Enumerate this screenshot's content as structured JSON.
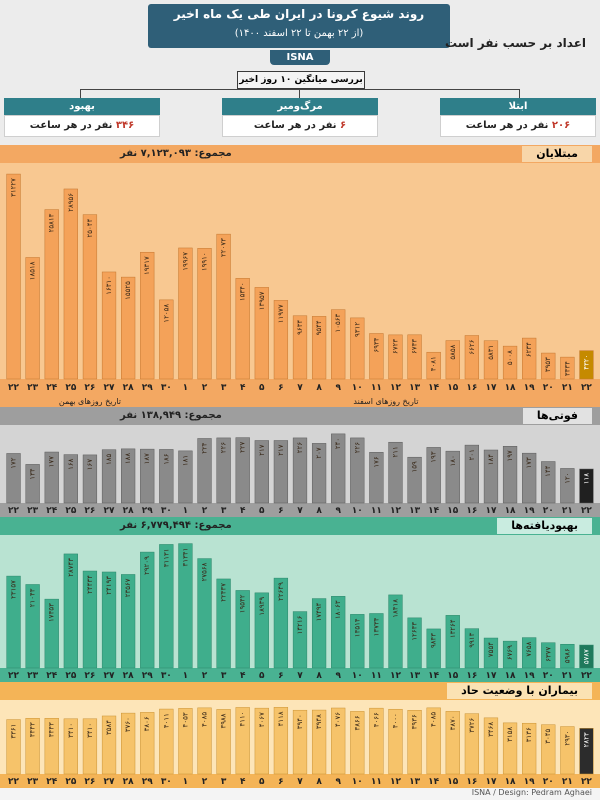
{
  "header": {
    "title": "روند شیوع کرونا در ایران طی یک ماه اخیر",
    "subtitle": "(از ۲۲ بهمن تا ۲۲ اسفند ۱۴۰۰)",
    "brand": "ISNA",
    "note": "اعداد بر حسب نفر است",
    "avg_label": "بررسی میانگین ۱۰ روز اخیر"
  },
  "stats": [
    {
      "title": "ابتلا",
      "value": "۲۰۶",
      "unit": "نفر در هر ساعت"
    },
    {
      "title": "مرگ‌ومیر",
      "value": "۶",
      "unit": "نفر در هر ساعت"
    },
    {
      "title": "بهبود",
      "value": "۳۴۶",
      "unit": "نفر در هر ساعت"
    }
  ],
  "colors": {
    "header_blue": "#2f5f78",
    "stat_teal": "#2f7f8a",
    "orange": "#f4a259",
    "gray": "#8a8a8a",
    "green": "#3fae8c",
    "gold": "#f6c36a"
  },
  "axis": {
    "dates": [
      "۲۲",
      "۲۳",
      "۲۴",
      "۲۵",
      "۲۶",
      "۲۷",
      "۲۸",
      "۲۹",
      "۳۰",
      "۱",
      "۲",
      "۳",
      "۴",
      "۵",
      "۶",
      "۷",
      "۸",
      "۹",
      "۱۰",
      "۱۱",
      "۱۲",
      "۱۳",
      "۱۴",
      "۱۵",
      "۱۶",
      "۱۷",
      "۱۸",
      "۱۹",
      "۲۰",
      "۲۱",
      "۲۲"
    ],
    "bahman_label": "تاریخ روزهای بهمن",
    "esfand_label": "تاریخ روزهای اسفند"
  },
  "footer": "ISNA / Design: Pedram Aghaei",
  "chart_data": [
    {
      "type": "bar",
      "title": "مبتلایان",
      "total_label": "مجموع: ۷,۱۲۳,۰۹۳ نفر",
      "categories": [
        "۲۲",
        "۲۳",
        "۲۴",
        "۲۵",
        "۲۶",
        "۲۷",
        "۲۸",
        "۲۹",
        "۳۰",
        "۱",
        "۲",
        "۳",
        "۴",
        "۵",
        "۶",
        "۷",
        "۸",
        "۹",
        "۱۰",
        "۱۱",
        "۱۲",
        "۱۳",
        "۱۴",
        "۱۵",
        "۱۶",
        "۱۷",
        "۱۸",
        "۱۹",
        "۲۰",
        "۲۱",
        "۲۲"
      ],
      "values": [
        31227,
        18518,
        25813,
        28956,
        25044,
        16310,
        15525,
        19317,
        12058,
        19967,
        19910,
        22073,
        15340,
        13957,
        11977,
        9634,
        9544,
        10563,
        9312,
        6934,
        6723,
        6733,
        4081,
        5858,
        6626,
        5831,
        5008,
        6234,
        3953,
        3334,
        4320
      ],
      "labels": [
        "۳۱۲۲۷",
        "۱۸۵۱۸",
        "۲۵۸۱۳",
        "۲۸۹۵۶",
        "۲۵۰۴۴",
        "۱۶۳۱۰",
        "۱۵۵۲۵",
        "۱۹۳۱۷",
        "۱۲۰۵۸",
        "۱۹۹۶۷",
        "۱۹۹۱۰",
        "۲۲۰۷۳",
        "۱۵۳۴۰",
        "۱۳۹۵۷",
        "۱۱۹۷۷",
        "۹۶۳۴",
        "۹۵۴۴",
        "۱۰۵۶۳",
        "۹۳۱۲",
        "۶۹۳۴",
        "۶۷۲۳",
        "۶۷۳۳",
        "۴۰۸۱",
        "۵۸۵۸",
        "۶۶۲۶",
        "۵۸۳۱",
        "۵۰۰۸",
        "۶۲۳۴",
        "۳۹۵۳",
        "۳۳۳۴",
        "۴۳۲۰"
      ],
      "ylim": [
        0,
        32000
      ]
    },
    {
      "type": "bar",
      "title": "فوتی‌ها",
      "total_label": "مجموع: ۱۳۸,۹۴۹ نفر",
      "categories": [
        "۲۲",
        "۲۳",
        "۲۴",
        "۲۵",
        "۲۶",
        "۲۷",
        "۲۸",
        "۲۹",
        "۳۰",
        "۱",
        "۲",
        "۳",
        "۴",
        "۵",
        "۶",
        "۷",
        "۸",
        "۹",
        "۱۰",
        "۱۱",
        "۱۲",
        "۱۳",
        "۱۴",
        "۱۵",
        "۱۶",
        "۱۷",
        "۱۸",
        "۱۹",
        "۲۰",
        "۲۱",
        "۲۲"
      ],
      "values": [
        172,
        134,
        177,
        168,
        167,
        185,
        188,
        187,
        186,
        181,
        224,
        226,
        227,
        217,
        217,
        226,
        207,
        240,
        226,
        176,
        211,
        159,
        193,
        180,
        201,
        184,
        197,
        173,
        144,
        120,
        118
      ],
      "labels": [
        "۱۷۲",
        "۱۳۴",
        "۱۷۷",
        "۱۶۸",
        "۱۶۷",
        "۱۸۵",
        "۱۸۸",
        "۱۸۷",
        "۱۸۶",
        "۱۸۱",
        "۲۲۴",
        "۲۲۶",
        "۲۲۷",
        "۲۱۷",
        "۲۱۷",
        "۲۲۶",
        "۲۰۷",
        "۲۴۰",
        "۲۲۶",
        "۱۷۶",
        "۲۱۱",
        "۱۵۹",
        "۱۹۳",
        "۱۸۰",
        "۲۰۱",
        "۱۸۴",
        "۱۹۷",
        "۱۷۳",
        "۱۴۴",
        "۱۲۰",
        "۱۱۸"
      ],
      "ylim": [
        0,
        250
      ]
    },
    {
      "type": "bar",
      "title": "بهبودیافته‌ها",
      "total_label": "مجموع: ۶,۷۷۹,۴۹۴ نفر",
      "categories": [
        "۲۲",
        "۲۳",
        "۲۴",
        "۲۵",
        "۲۶",
        "۲۷",
        "۲۸",
        "۲۹",
        "۳۰",
        "۱",
        "۲",
        "۳",
        "۴",
        "۵",
        "۶",
        "۷",
        "۸",
        "۹",
        "۱۰",
        "۱۱",
        "۱۲",
        "۱۳",
        "۱۴",
        "۱۵",
        "۱۶",
        "۱۷",
        "۱۸",
        "۱۹",
        "۲۰",
        "۲۱",
        "۲۲"
      ],
      "values": [
        23157,
        21043,
        17353,
        28743,
        24434,
        24193,
        23567,
        29209,
        31131,
        31341,
        27568,
        22437,
        19542,
        18939,
        22649,
        14216,
        17494,
        18063,
        13514,
        13734,
        18418,
        12633,
        9843,
        13264,
        9913,
        7554,
        6769,
        7658,
        6377,
        5986,
        5787
      ],
      "labels": [
        "۲۳۱۵۷",
        "۲۱۰۴۳",
        "۱۷۳۵۳",
        "۲۸۷۴۳",
        "۲۴۴۳۴",
        "۲۴۱۹۳",
        "۲۳۵۶۷",
        "۲۹۲۰۹",
        "۳۱۱۳۱",
        "۳۱۳۴۱",
        "۲۷۵۶۸",
        "۲۲۴۳۷",
        "۱۹۵۴۲",
        "۱۸۹۳۹",
        "۲۲۶۴۹",
        "۱۴۲۱۶",
        "۱۷۴۹۴",
        "۱۸۰۶۳",
        "۱۳۵۱۴",
        "۱۳۷۳۴",
        "۱۸۴۱۸",
        "۱۲۶۳۳",
        "۹۸۴۳",
        "۱۳۲۶۴",
        "۹۹۱۳",
        "۷۵۵۴",
        "۶۷۶۹",
        "۷۶۵۸",
        "۶۳۷۷",
        "۵۹۸۶",
        "۵۷۸۷"
      ],
      "ylim": [
        0,
        32000
      ]
    },
    {
      "type": "bar",
      "title": "بیماران با وضعیت حاد",
      "categories": [
        "۲۲",
        "۲۳",
        "۲۴",
        "۲۵",
        "۲۶",
        "۲۷",
        "۲۸",
        "۲۹",
        "۳۰",
        "۱",
        "۲",
        "۳",
        "۴",
        "۵",
        "۶",
        "۷",
        "۸",
        "۹",
        "۱۰",
        "۱۱",
        "۱۲",
        "۱۳",
        "۱۴",
        "۱۵",
        "۱۶",
        "۱۷",
        "۱۸",
        "۱۹",
        "۲۰",
        "۲۱",
        "۲۲"
      ],
      "values": [
        3361,
        3443,
        3443,
        3410,
        3410,
        3584,
        3760,
        3806,
        4011,
        4053,
        4085,
        3988,
        4110,
        4067,
        4118,
        3940,
        3948,
        4076,
        3866,
        4066,
        4000,
        3936,
        4085,
        3870,
        3726,
        3468,
        3158,
        3136,
        3045,
        2930,
        2823
      ],
      "labels": [
        "۳۳۶۱",
        "۳۴۴۳",
        "۳۴۴۳",
        "۳۴۱۰",
        "۳۴۱۰",
        "۳۵۸۴",
        "۳۷۶۰",
        "۳۸۰۶",
        "۴۰۱۱",
        "۴۰۵۳",
        "۴۰۸۵",
        "۳۹۸۸",
        "۴۱۱۰",
        "۴۰۶۷",
        "۴۱۱۸",
        "۳۹۴۰",
        "۳۹۴۸",
        "۴۰۷۶",
        "۳۸۶۶",
        "۴۰۶۶",
        "۴۰۰۰",
        "۳۹۳۶",
        "۴۰۸۵",
        "۳۸۷۰",
        "۳۷۲۶",
        "۳۴۶۸",
        "۳۱۵۸",
        "۳۱۳۶",
        "۳۰۴۵",
        "۲۹۳۰",
        "۲۸۲۳"
      ],
      "ylim": [
        0,
        4200
      ]
    }
  ]
}
